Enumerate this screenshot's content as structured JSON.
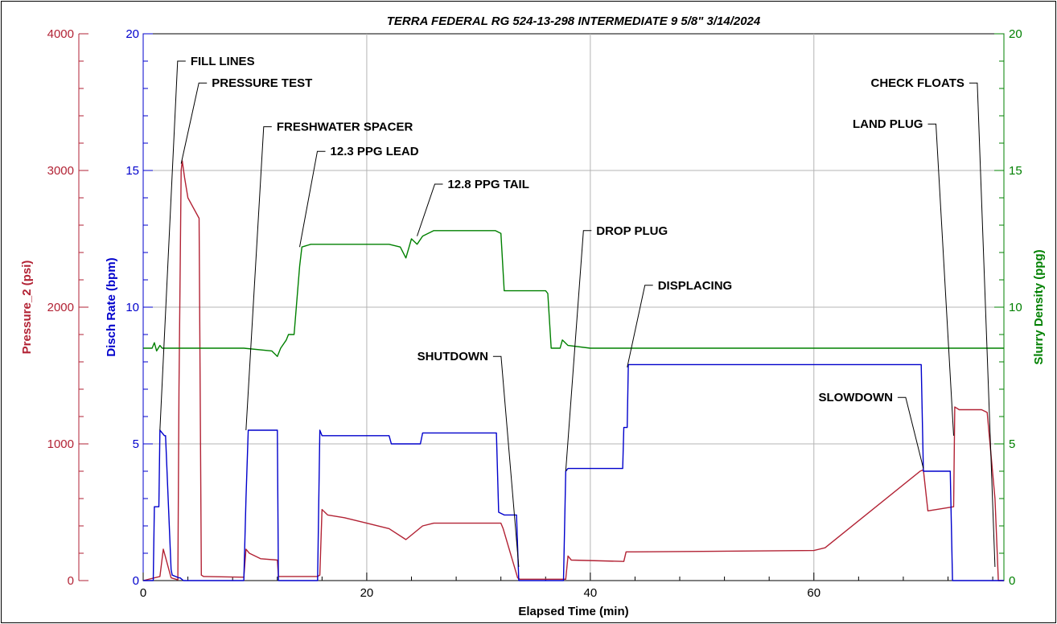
{
  "chart_data": {
    "type": "line",
    "title": "TERRA FEDERAL RG 524-13-298 INTERMEDIATE 9 5/8\" 3/14/2024",
    "xlabel": "Elapsed Time (min)",
    "xlim": [
      0,
      77
    ],
    "xticks": [
      0,
      20,
      40,
      60
    ],
    "grid": true,
    "axes": {
      "pressure": {
        "label": "Pressure_2 (psi)",
        "ylim": [
          0,
          4000
        ],
        "ticks": [
          0,
          1000,
          2000,
          3000,
          4000
        ],
        "color": "#b22234"
      },
      "rate": {
        "label": "Disch Rate (bpm)",
        "ylim": [
          0,
          20
        ],
        "ticks": [
          0,
          5,
          10,
          15,
          20
        ],
        "color": "#0000cc"
      },
      "density": {
        "label": "Slurry Density (ppg)",
        "ylim": [
          0,
          20
        ],
        "ticks": [
          0,
          5,
          10,
          15,
          20
        ],
        "color": "#008000"
      }
    },
    "series": [
      {
        "axis": "pressure",
        "color": "#b22234",
        "x": [
          0,
          1.5,
          1.8,
          2.0,
          2.5,
          3.1,
          3.2,
          3.4,
          3.5,
          3.7,
          4.0,
          5.0,
          5.2,
          5.4,
          9.0,
          9.2,
          9.5,
          10.5,
          12.0,
          12.1,
          15.6,
          15.8,
          16.0,
          16.5,
          18.0,
          20.0,
          22.0,
          23.5,
          25.0,
          26.0,
          32.0,
          32.2,
          33.5,
          33.7,
          37.8,
          38.0,
          38.3,
          43.0,
          43.2,
          44.0,
          60.0,
          61.0,
          69.5,
          69.8,
          70.2,
          72.5,
          72.6,
          73.0,
          75.0,
          75.5,
          76.2,
          76.5,
          77.0
        ],
        "y": [
          0,
          30,
          230,
          170,
          20,
          5,
          1400,
          3000,
          3070,
          2950,
          2800,
          2650,
          40,
          30,
          25,
          230,
          200,
          160,
          150,
          30,
          30,
          40,
          520,
          480,
          460,
          420,
          380,
          300,
          400,
          420,
          420,
          380,
          20,
          10,
          10,
          180,
          150,
          140,
          210,
          210,
          220,
          240,
          800,
          810,
          510,
          540,
          1270,
          1250,
          1250,
          1230,
          600,
          0,
          0
        ]
      },
      {
        "axis": "rate",
        "color": "#0000cc",
        "x": [
          0,
          0.9,
          1.0,
          1.4,
          1.5,
          1.9,
          2.0,
          2.5,
          2.6,
          3.2,
          3.3,
          3.6,
          9.0,
          9.2,
          9.4,
          12.0,
          12.1,
          15.6,
          15.8,
          16.0,
          18.0,
          19.0,
          22.0,
          22.2,
          24.8,
          25.0,
          31.6,
          31.8,
          32.3,
          33.4,
          33.6,
          37.6,
          37.8,
          38.0,
          42.9,
          43.0,
          43.3,
          43.4,
          69.6,
          69.8,
          72.2,
          72.4,
          77.0
        ],
        "y": [
          0,
          0,
          2.7,
          2.7,
          5.5,
          5.3,
          5.3,
          0.4,
          0.2,
          0.1,
          0.1,
          0.0,
          0,
          3.0,
          5.5,
          5.5,
          0,
          0,
          5.5,
          5.3,
          5.3,
          5.3,
          5.3,
          5.0,
          5.0,
          5.4,
          5.4,
          2.5,
          2.4,
          2.4,
          0,
          0,
          4.0,
          4.1,
          4.1,
          5.6,
          5.6,
          7.9,
          7.9,
          4.0,
          4.0,
          0,
          0
        ]
      },
      {
        "axis": "density",
        "color": "#008000",
        "x": [
          0,
          0.8,
          1.0,
          1.2,
          1.5,
          1.7,
          2.0,
          8.0,
          9.0,
          11.5,
          12.0,
          12.3,
          12.8,
          13.0,
          13.5,
          14.0,
          14.2,
          15.0,
          16.0,
          18.0,
          20.0,
          22.0,
          23.0,
          23.5,
          24.0,
          24.5,
          25.0,
          26.0,
          28.0,
          30.0,
          31.5,
          32.0,
          32.3,
          33.5,
          36.0,
          36.2,
          36.5,
          37.3,
          37.5,
          38.0,
          40.0,
          45.0,
          60.0,
          77.0
        ],
        "y": [
          8.5,
          8.5,
          8.7,
          8.4,
          8.6,
          8.5,
          8.5,
          8.5,
          8.5,
          8.4,
          8.2,
          8.5,
          8.8,
          9.0,
          9.0,
          11.5,
          12.2,
          12.3,
          12.3,
          12.3,
          12.3,
          12.3,
          12.2,
          11.8,
          12.5,
          12.3,
          12.6,
          12.8,
          12.8,
          12.8,
          12.8,
          12.7,
          10.6,
          10.6,
          10.6,
          10.5,
          8.5,
          8.5,
          8.8,
          8.6,
          8.5,
          8.5,
          8.5,
          8.5
        ]
      }
    ],
    "annotations": [
      {
        "text": "FILL LINES",
        "x": 1.5,
        "axis": "rate",
        "y": 5.5,
        "label_y": 19.0,
        "direction": "right"
      },
      {
        "text": "PRESSURE TEST",
        "x": 3.4,
        "axis": "pressure",
        "y": 3050,
        "label_y": 18.2,
        "direction": "right"
      },
      {
        "text": "FRESHWATER SPACER",
        "x": 9.2,
        "axis": "rate",
        "y": 5.5,
        "label_y": 16.6,
        "direction": "right"
      },
      {
        "text": "12.3 PPG LEAD",
        "x": 14.0,
        "axis": "density",
        "y": 12.2,
        "label_y": 15.7,
        "direction": "right"
      },
      {
        "text": "12.8 PPG TAIL",
        "x": 24.5,
        "axis": "density",
        "y": 12.6,
        "label_y": 14.5,
        "direction": "right"
      },
      {
        "text": "SHUTDOWN",
        "x": 33.6,
        "axis": "rate",
        "y": 0.5,
        "label_y": 8.2,
        "direction": "left"
      },
      {
        "text": "DROP PLUG",
        "x": 37.8,
        "axis": "rate",
        "y": 4.0,
        "label_y": 12.8,
        "direction": "right"
      },
      {
        "text": "DISPLACING",
        "x": 43.3,
        "axis": "rate",
        "y": 7.8,
        "label_y": 10.8,
        "direction": "right"
      },
      {
        "text": "SLOWDOWN",
        "x": 69.8,
        "axis": "rate",
        "y": 4.1,
        "label_y": 6.7,
        "direction": "left"
      },
      {
        "text": "LAND PLUG",
        "x": 72.5,
        "axis": "rate",
        "y": 5.3,
        "label_y": 16.7,
        "direction": "left"
      },
      {
        "text": "CHECK FLOATS",
        "x": 76.2,
        "axis": "rate",
        "y": 0.5,
        "label_y": 18.2,
        "direction": "left"
      }
    ]
  }
}
